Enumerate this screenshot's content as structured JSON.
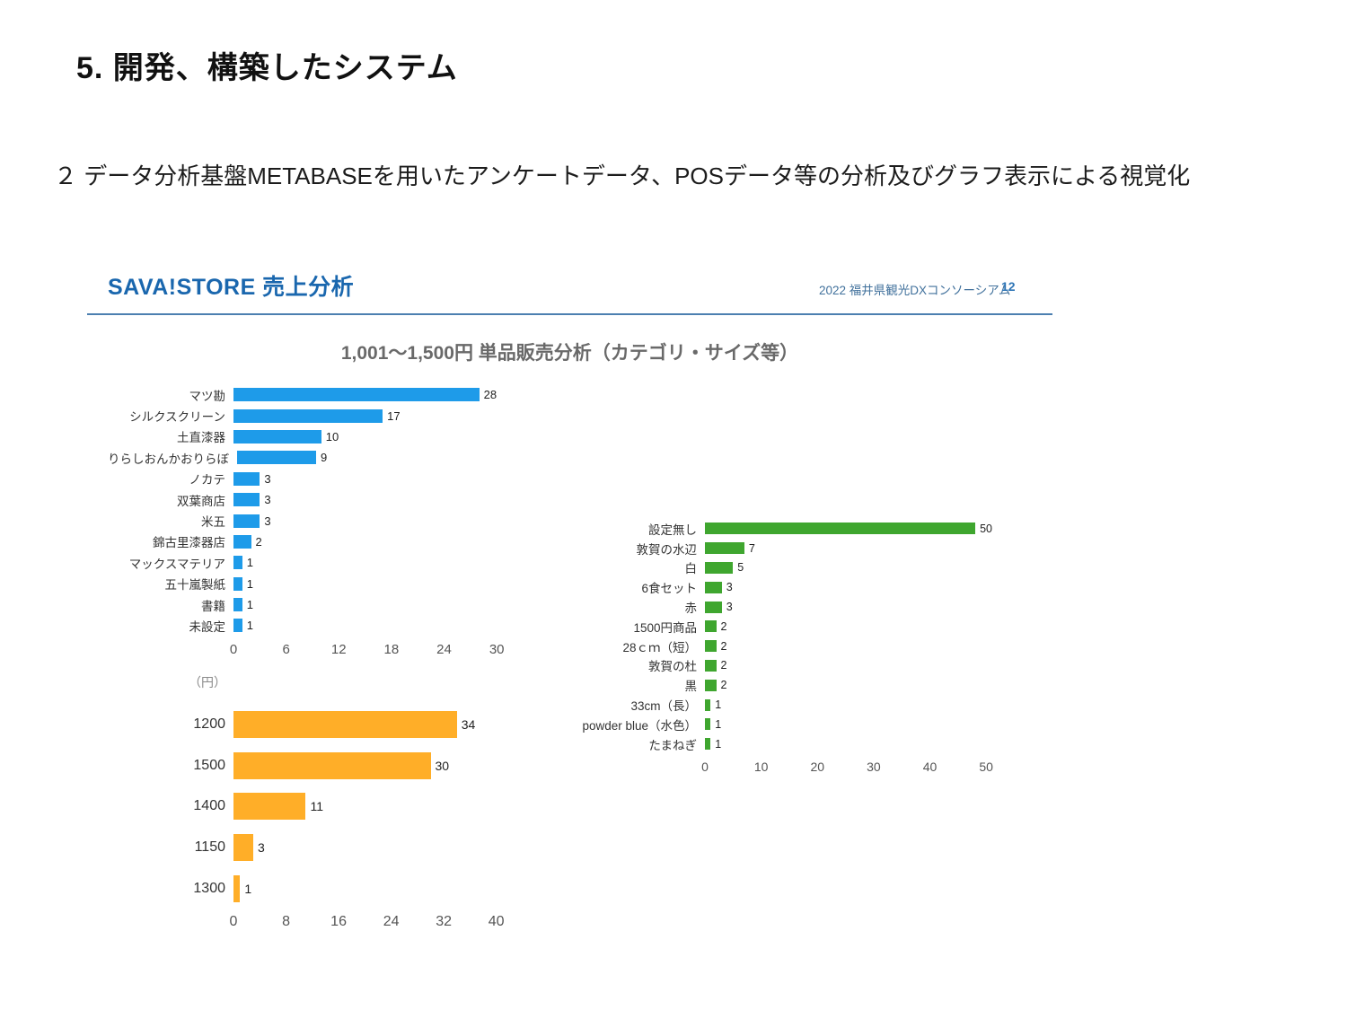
{
  "page": {
    "title": "5. 開発、構築したシステム",
    "subtitle": "２ データ分析基盤METABASEを用いたアンケートデータ、POSデータ等の分析及びグラフ表示による視覚化"
  },
  "slide": {
    "title": "SAVA!STORE 売上分析",
    "meta": "2022 福井県観光DXコンソーシアム",
    "page_number": "12",
    "chart_title": "1,001〜1,500円 単品販売分析（カテゴリ・サイズ等）"
  },
  "colors": {
    "accent_blue": "#1a67ae",
    "divider_blue": "#4c7fb0",
    "bar_blue": "#1e9be9",
    "bar_green": "#3fa62f",
    "bar_orange": "#ffae28",
    "title_gray": "#696969"
  },
  "chart_data": [
    {
      "type": "bar",
      "orientation": "horizontal",
      "name": "vendor-sales",
      "color": "#1e9be9",
      "categories": [
        "マツ勘",
        "シルクスクリーン",
        "土直漆器",
        "りらしおんかおりらぼ",
        "ノカテ",
        "双葉商店",
        "米五",
        "錦古里漆器店",
        "マックスマテリア",
        "五十嵐製紙",
        "書籍",
        "未設定"
      ],
      "values": [
        28,
        17,
        10,
        9,
        3,
        3,
        3,
        2,
        1,
        1,
        1,
        1
      ],
      "xticks": [
        0,
        6,
        12,
        18,
        24,
        30
      ],
      "xlim": [
        0,
        30.7
      ],
      "grid": false,
      "legend": "none"
    },
    {
      "type": "bar",
      "orientation": "horizontal",
      "name": "option-sales",
      "color": "#3fa62f",
      "categories": [
        "設定無し",
        "敦賀の水辺",
        "白",
        "6食セット",
        "赤",
        "1500円商品",
        "28ｃｍ（短）",
        "敦賀の杜",
        "黒",
        "33cm（長）",
        "powder blue（水色）",
        "たまねぎ"
      ],
      "values": [
        50,
        7,
        5,
        3,
        3,
        2,
        2,
        2,
        2,
        1,
        1,
        1
      ],
      "xticks": [
        0,
        10,
        20,
        30,
        40,
        50
      ],
      "xlim": [
        0,
        51.1
      ],
      "grid": false,
      "legend": "none"
    },
    {
      "type": "bar",
      "orientation": "horizontal",
      "name": "price-sales",
      "unit_label": "（円）",
      "color": "#ffae28",
      "categories": [
        "1200",
        "1500",
        "1400",
        "1150",
        "1300"
      ],
      "values": [
        34,
        30,
        11,
        3,
        1
      ],
      "xticks": [
        0,
        8,
        16,
        24,
        32,
        40
      ],
      "xlim": [
        0,
        41.0
      ],
      "grid": false,
      "legend": "none"
    }
  ]
}
